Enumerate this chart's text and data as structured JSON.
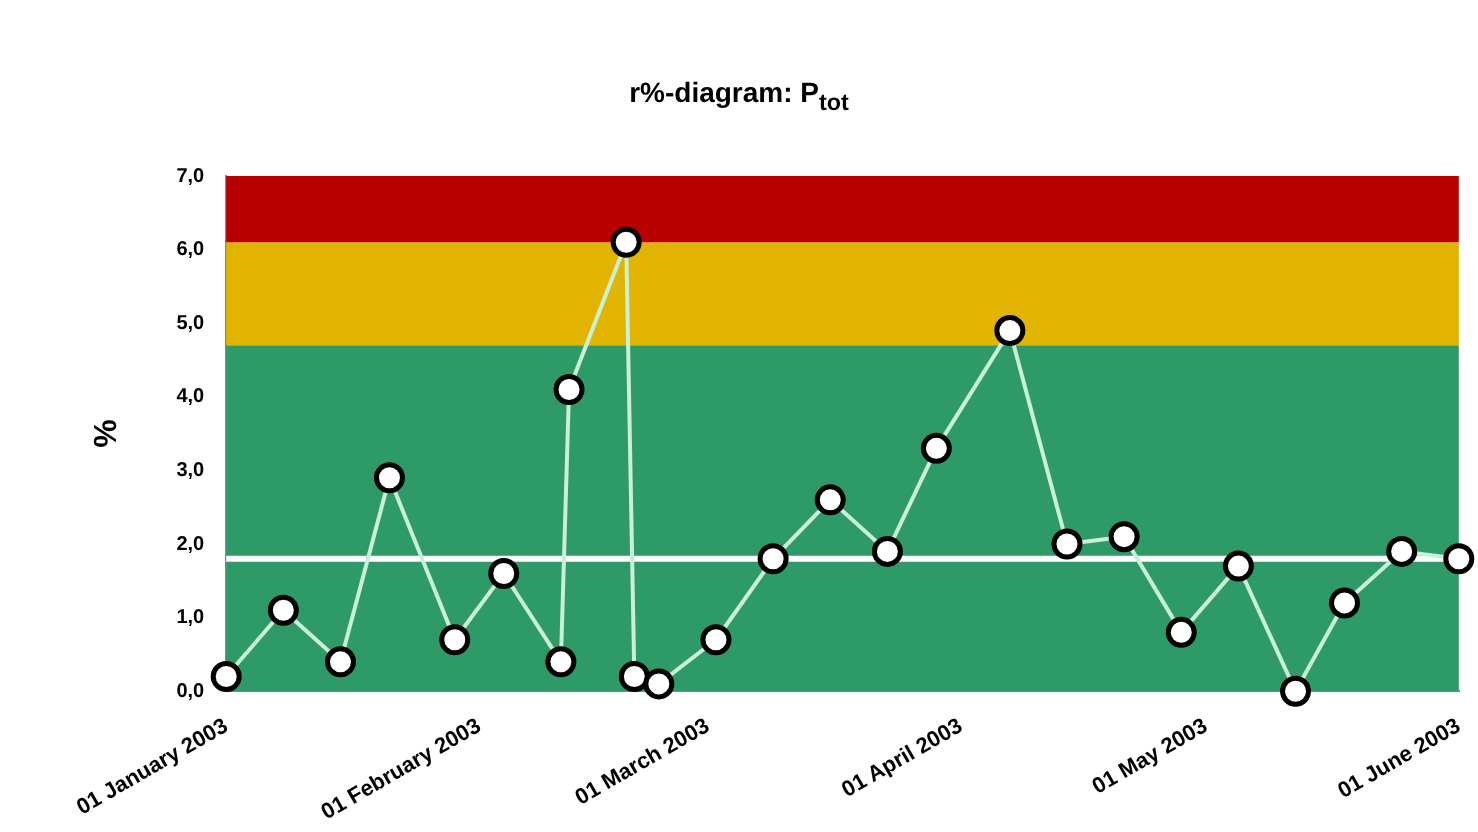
{
  "chart_data": {
    "type": "line",
    "title": "r%-diagram: P$_{tot}$",
    "ylabel": "%",
    "x": [
      "2003-01-01",
      "2003-01-08",
      "2003-01-15",
      "2003-01-21",
      "2003-01-29",
      "2003-02-04",
      "2003-02-11",
      "2003-02-12",
      "2003-02-19",
      "2003-02-20",
      "2003-02-23",
      "2003-03-02",
      "2003-03-09",
      "2003-03-16",
      "2003-03-23",
      "2003-03-29",
      "2003-04-07",
      "2003-04-14",
      "2003-04-21",
      "2003-04-28",
      "2003-05-05",
      "2003-05-12",
      "2003-05-18",
      "2003-05-25",
      "2003-06-01"
    ],
    "series": [
      {
        "color": "#c8f0d4",
        "values": [
          0.2,
          1.1,
          0.4,
          2.9,
          0.7,
          1.6,
          0.4,
          4.1,
          6.1,
          0.2,
          0.1,
          0.7,
          1.8,
          2.6,
          1.9,
          3.3,
          4.9,
          2.0,
          2.1,
          0.8,
          1.7,
          0.0,
          1.2,
          1.9,
          1.8
        ]
      }
    ],
    "xlim": [
      "2003-01-01",
      "2003-06-01"
    ],
    "xticks": [
      {
        "value": "2003-01-01",
        "label": "01 January 2003"
      },
      {
        "value": "2003-02-01",
        "label": "01 February 2003"
      },
      {
        "value": "2003-03-01",
        "label": "01 March 2003"
      },
      {
        "value": "2003-04-01",
        "label": "01 April 2003"
      },
      {
        "value": "2003-05-01",
        "label": "01 May 2003"
      },
      {
        "value": "2003-06-01",
        "label": "01 June 2003"
      }
    ],
    "ylim": [
      0,
      7
    ],
    "yticks": [
      {
        "value": 0,
        "label": "0,0"
      },
      {
        "value": 1,
        "label": "1,0"
      },
      {
        "value": 2,
        "label": "2,0"
      },
      {
        "value": 3,
        "label": "3,0"
      },
      {
        "value": 4,
        "label": "4,0"
      },
      {
        "value": 5,
        "label": "5,0"
      },
      {
        "value": 6,
        "label": "6,0"
      },
      {
        "value": 7,
        "label": "7,0"
      }
    ],
    "bands": [
      {
        "axis": "y",
        "from": 0,
        "to": 4.7,
        "color": "#2e9a68"
      },
      {
        "axis": "y",
        "from": 4.7,
        "to": 6.1,
        "color": "#e0b400"
      },
      {
        "axis": "y",
        "from": 6.1,
        "to": 7,
        "color": "#b80000"
      }
    ],
    "ref_lines": [
      {
        "axis": "y",
        "value": 1.8,
        "color": "#ffffff"
      }
    ],
    "grid": false,
    "legend": false,
    "marker": "circle",
    "line_style": "solid"
  }
}
